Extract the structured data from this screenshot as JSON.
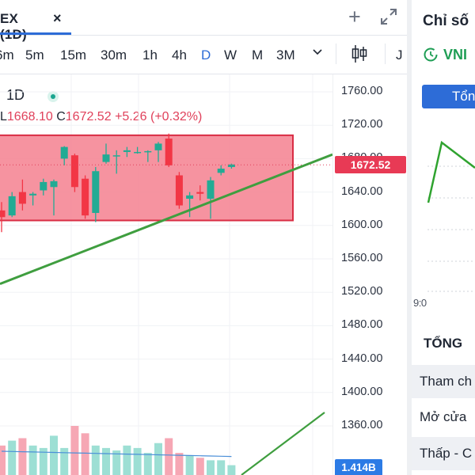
{
  "tab": {
    "title": "EX (1D)",
    "close_glyph": "×"
  },
  "tab_actions": {
    "add_glyph": "+"
  },
  "timeframes": [
    {
      "label": "6m",
      "active": false
    },
    {
      "label": "5m",
      "active": false
    },
    {
      "label": "15m",
      "active": false
    },
    {
      "label": "30m",
      "active": false
    },
    {
      "label": "1h",
      "active": false
    },
    {
      "label": "4h",
      "active": false
    },
    {
      "label": "D",
      "active": true
    },
    {
      "label": "W",
      "active": false
    },
    {
      "label": "M",
      "active": false
    },
    {
      "label": "3M",
      "active": false
    }
  ],
  "toolbar": {
    "cut_label": "J"
  },
  "legend": {
    "interval": "1D",
    "low_label": "L",
    "low_value": "1668.10",
    "close_label": "C",
    "close_value": "1672.52",
    "change": "+5.26 (+0.32%)"
  },
  "price_tag": "1672.52",
  "volume_tag": "1.414B",
  "colors": {
    "up": "#22ab94",
    "down": "#f23645",
    "box_fill": "#f4808f",
    "box_border": "#d92d44",
    "trendline": "#3f9e3f",
    "accent": "#2d6cd7"
  },
  "chart_data": {
    "type": "candlestick",
    "y_ticks": [
      "1760.00",
      "1720.00",
      "1680.00",
      "1640.00",
      "1600.00",
      "1560.00",
      "1520.00",
      "1480.00",
      "1440.00",
      "1400.00",
      "1360.00"
    ],
    "ylim": [
      1340,
      1770
    ],
    "candles": [
      {
        "o": 1618,
        "h": 1628,
        "l": 1592,
        "c": 1610
      },
      {
        "o": 1612,
        "h": 1640,
        "l": 1610,
        "c": 1635
      },
      {
        "o": 1640,
        "h": 1655,
        "l": 1618,
        "c": 1626
      },
      {
        "o": 1636,
        "h": 1640,
        "l": 1624,
        "c": 1638
      },
      {
        "o": 1642,
        "h": 1656,
        "l": 1636,
        "c": 1652
      },
      {
        "o": 1646,
        "h": 1655,
        "l": 1612,
        "c": 1653
      },
      {
        "o": 1680,
        "h": 1695,
        "l": 1672,
        "c": 1694
      },
      {
        "o": 1684,
        "h": 1686,
        "l": 1640,
        "c": 1646
      },
      {
        "o": 1656,
        "h": 1660,
        "l": 1608,
        "c": 1612
      },
      {
        "o": 1615,
        "h": 1670,
        "l": 1604,
        "c": 1665
      },
      {
        "o": 1676,
        "h": 1698,
        "l": 1674,
        "c": 1685
      },
      {
        "o": 1684,
        "h": 1690,
        "l": 1662,
        "c": 1684
      },
      {
        "o": 1688,
        "h": 1694,
        "l": 1682,
        "c": 1690
      },
      {
        "o": 1688,
        "h": 1694,
        "l": 1686,
        "c": 1688
      },
      {
        "o": 1688,
        "h": 1690,
        "l": 1676,
        "c": 1689
      },
      {
        "o": 1690,
        "h": 1700,
        "l": 1676,
        "c": 1698
      },
      {
        "o": 1704,
        "h": 1710,
        "l": 1670,
        "c": 1672
      },
      {
        "o": 1660,
        "h": 1664,
        "l": 1620,
        "c": 1624
      },
      {
        "o": 1632,
        "h": 1640,
        "l": 1610,
        "c": 1636
      },
      {
        "o": 1640,
        "h": 1648,
        "l": 1630,
        "c": 1638
      },
      {
        "o": 1632,
        "h": 1658,
        "l": 1608,
        "c": 1654
      },
      {
        "o": 1663,
        "h": 1672,
        "l": 1660,
        "c": 1668
      },
      {
        "o": 1670,
        "h": 1674,
        "l": 1668,
        "c": 1673
      }
    ],
    "box_range": [
      1606,
      1708
    ],
    "trendline": {
      "from": 1530,
      "to": 1685
    },
    "volumes": [
      0.6,
      0.7,
      0.75,
      0.6,
      0.55,
      0.8,
      0.55,
      1.0,
      0.85,
      0.6,
      0.55,
      0.5,
      0.6,
      0.55,
      0.45,
      0.65,
      0.75,
      0.45,
      0.4,
      0.35,
      0.3,
      0.3,
      0.2
    ]
  },
  "side": {
    "title": "Chỉ số",
    "symbol": "VNI",
    "button_label": "Tổn",
    "axis_text": "9:0",
    "summary_title": "TỔNG",
    "rows": [
      "Tham ch",
      "Mở cửa",
      "Thấp - C"
    ]
  }
}
